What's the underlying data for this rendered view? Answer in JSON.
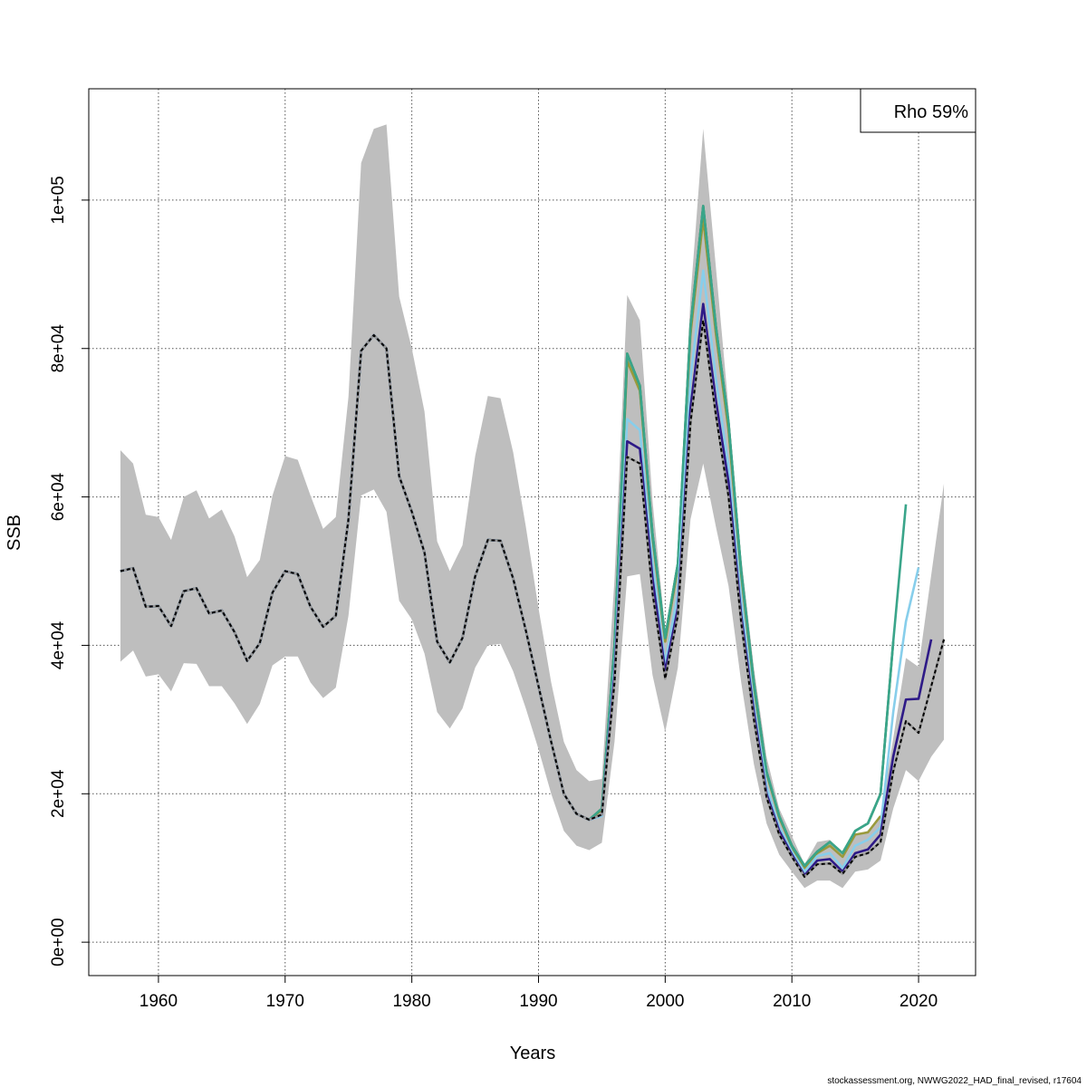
{
  "chart_data": {
    "type": "line",
    "title": "",
    "xlabel": "Years",
    "ylabel": "SSB",
    "xlim": [
      1954.5,
      2024.5
    ],
    "ylim": [
      -4500,
      115000
    ],
    "x_ticks": [
      1960,
      1970,
      1980,
      1990,
      2000,
      2010,
      2020
    ],
    "x_tick_labels": [
      "1960",
      "1970",
      "1980",
      "1990",
      "2000",
      "2010",
      "2020"
    ],
    "y_ticks": [
      0,
      20000,
      40000,
      60000,
      80000,
      100000
    ],
    "y_tick_labels": [
      "0e+00",
      "2e+04",
      "4e+04",
      "6e+04",
      "8e+04",
      "1e+05"
    ],
    "grid": true,
    "legend": {
      "text": "Rho 59%",
      "placement": "top-right"
    },
    "footer": "stockassessment.org, NWWG2022_HAD_final_revised, r17604",
    "base": {
      "color": "#000000",
      "style": "dashed",
      "start_year": 1957,
      "values": [
        50000,
        50400,
        45200,
        45300,
        42600,
        47300,
        47700,
        44300,
        44700,
        41800,
        37900,
        40300,
        47100,
        50000,
        49600,
        45200,
        42500,
        44000,
        57000,
        79700,
        81800,
        80000,
        62800,
        58000,
        52500,
        40500,
        37700,
        41000,
        49300,
        54200,
        54100,
        49000,
        42000,
        34500,
        27000,
        20000,
        17300,
        16500,
        17200,
        35000,
        65400,
        64500,
        47000,
        35500,
        44000,
        70000,
        83800,
        71000,
        60000,
        43000,
        30000,
        19500,
        14500,
        11500,
        8800,
        10500,
        10600,
        9200,
        11500,
        12000,
        13500,
        23000,
        29800,
        28200,
        34500,
        40800
      ]
    },
    "confidence_band": {
      "color": "#bebebe",
      "start_year": 1957,
      "upper": [
        66300,
        64500,
        57600,
        57300,
        54200,
        60000,
        60900,
        57100,
        58300,
        54700,
        49200,
        51500,
        60200,
        65500,
        65000,
        60200,
        55700,
        57300,
        73500,
        105000,
        109600,
        110200,
        87000,
        80000,
        71500,
        54000,
        50000,
        53500,
        65500,
        73600,
        73300,
        66000,
        56000,
        45000,
        35000,
        27000,
        23200,
        21700,
        22000,
        49000,
        87200,
        83800,
        59500,
        42000,
        52000,
        87000,
        109600,
        91000,
        72000,
        52000,
        37000,
        25000,
        18000,
        14300,
        10500,
        13500,
        13800,
        12000,
        14500,
        15000,
        17000,
        27500,
        38300,
        37100,
        49500,
        61800
      ],
      "lower": [
        37800,
        39300,
        35800,
        36100,
        33800,
        37600,
        37500,
        34500,
        34500,
        32200,
        29400,
        32100,
        37300,
        38500,
        38500,
        35000,
        32900,
        34300,
        44000,
        60200,
        61000,
        58000,
        46000,
        43500,
        38900,
        31000,
        28800,
        31500,
        37000,
        40000,
        40200,
        36500,
        31500,
        26000,
        20000,
        15000,
        13000,
        12400,
        13400,
        27000,
        49300,
        49600,
        36000,
        28300,
        37000,
        57000,
        64500,
        56000,
        48000,
        35000,
        24000,
        16000,
        11800,
        9500,
        7300,
        8300,
        8300,
        7300,
        9500,
        9800,
        11000,
        18000,
        23200,
        21700,
        25000,
        27300
      ]
    },
    "peels": [
      {
        "color": "#9a9a3c",
        "start_year": 1995,
        "values": [
          17800,
          39500,
          78300,
          74300,
          54500,
          40500,
          50500,
          82000,
          97500,
          82000,
          69000,
          49500,
          34500,
          22800,
          16800,
          12800,
          10000,
          12000,
          13000,
          11500,
          14500,
          14800,
          17000
        ]
      },
      {
        "color": "#1b7a3a",
        "start_year": 1995,
        "values": [
          18000,
          40000,
          79300,
          75000,
          55000,
          41000,
          51000,
          83000,
          99200,
          83000,
          70000,
          50000,
          35000,
          23000,
          17000,
          13000,
          10300,
          12200,
          13500,
          12000,
          15000,
          16000,
          20000,
          40500
        ]
      },
      {
        "color": "#3aa58a",
        "start_year": 1995,
        "values": [
          18000,
          40000,
          79300,
          75000,
          55000,
          41000,
          51000,
          83000,
          99200,
          83000,
          70000,
          50000,
          35000,
          23000,
          17000,
          13000,
          10300,
          12200,
          13500,
          12000,
          15000,
          16000,
          20000,
          40500,
          59000
        ]
      },
      {
        "color": "#87ceeb",
        "start_year": 1995,
        "values": [
          17000,
          37000,
          70500,
          69000,
          51000,
          37500,
          47000,
          76000,
          90500,
          76000,
          64000,
          46000,
          32000,
          21000,
          15500,
          12200,
          9500,
          11600,
          12000,
          10000,
          13000,
          13800,
          15500,
          31000,
          43200,
          50500
        ]
      },
      {
        "color": "#2e1a87",
        "start_year": 1995,
        "values": [
          17200,
          36000,
          67500,
          66500,
          49000,
          36500,
          45000,
          72000,
          86000,
          73000,
          62000,
          44000,
          31000,
          20000,
          15000,
          11800,
          9000,
          11000,
          11200,
          9500,
          12000,
          12500,
          14500,
          25000,
          32700,
          32800,
          40800
        ]
      }
    ]
  }
}
